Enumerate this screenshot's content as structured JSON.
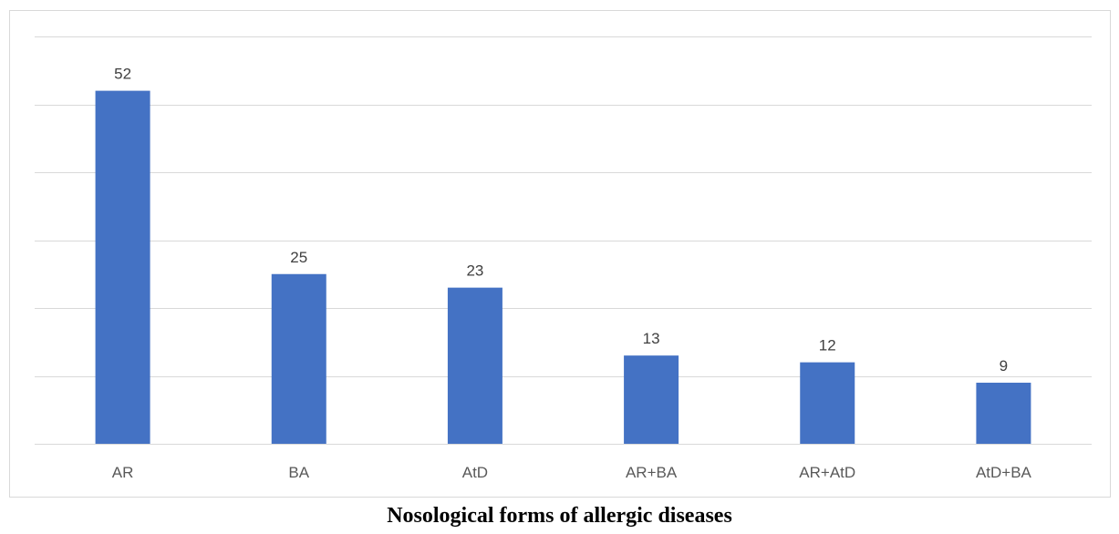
{
  "chart_data": {
    "type": "bar",
    "categories": [
      "AR",
      "BA",
      "AtD",
      "AR+BA",
      "AR+AtD",
      "AtD+BA"
    ],
    "values": [
      52,
      25,
      23,
      13,
      12,
      9
    ],
    "title": "",
    "xlabel": "",
    "ylabel": "",
    "ylim": [
      0,
      60
    ],
    "grid": true,
    "legend": "none",
    "bar_color": "#4472c4",
    "data_labels": true
  },
  "caption": "Nosological forms of allergic diseases"
}
